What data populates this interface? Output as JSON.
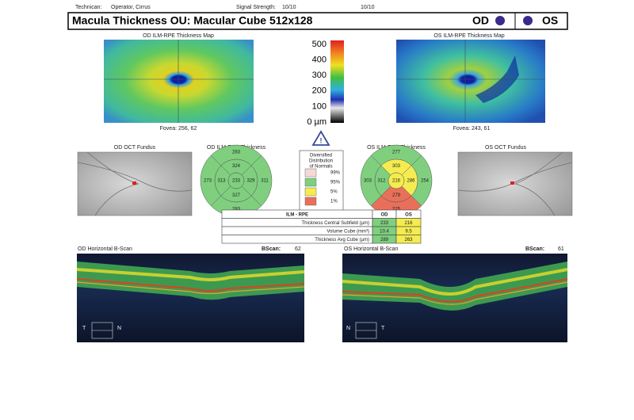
{
  "info": {
    "technician_label": "Technican:",
    "technician": "Operator, Cirrus",
    "signal_label": "Signal Strength:",
    "signal_od": "10/10",
    "signal_os": "10/10"
  },
  "header": {
    "title": "Macula Thickness OU: Macular Cube 512x128",
    "od": "OD",
    "os": "OS"
  },
  "maps": {
    "od": {
      "title": "OD ILM-RPE Thickness Map",
      "fovea": "Fovea: 256, 62"
    },
    "os": {
      "title": "OS ILM-RPE Thickness Map",
      "fovea": "Fovea: 243, 61"
    }
  },
  "scale": {
    "labels": [
      "500",
      "400",
      "300",
      "200",
      "100",
      "0 µm"
    ]
  },
  "fundus": {
    "od": "OD OCT Fundus",
    "os": "OS OCT Fundus"
  },
  "thickness": {
    "od": {
      "title": "OD ILM-RPE Thickness",
      "sectors": {
        "outer_top": "283",
        "inner_top": "324",
        "outer_left": "273",
        "inner_left": "313",
        "center": "233",
        "inner_right": "329",
        "outer_right": "311",
        "inner_bottom": "327",
        "outer_bottom": "283"
      }
    },
    "os": {
      "title": "OS ILM-RPE Thickness",
      "sectors": {
        "outer_top": "277",
        "inner_top": "303",
        "outer_left": "303",
        "inner_left": "312",
        "center": "216",
        "inner_right": "286",
        "outer_right": "254",
        "inner_bottom": "279",
        "outer_bottom": "225"
      }
    }
  },
  "legend": {
    "title": [
      "Diversified",
      "Distribution",
      "of Normals"
    ],
    "items": [
      "99%",
      "95%",
      "5%",
      "1%"
    ]
  },
  "table": {
    "header": [
      "ILM - RPE",
      "OD",
      "OS"
    ],
    "rows": [
      [
        "Thickness Central Subfield (µm)",
        "233",
        "216"
      ],
      [
        "Volume Cube (mm³)",
        "10.4",
        "9.5"
      ],
      [
        "Thickness Avg Cube (µm)",
        "289",
        "263"
      ]
    ]
  },
  "bscan": {
    "od": {
      "title": "OD Horizontal B-Scan",
      "label": "BScan:",
      "number": "62",
      "left": "T",
      "right": "N"
    },
    "os": {
      "title": "OS Horizontal B-Scan",
      "label": "BScan:",
      "number": "61",
      "left": "N",
      "right": "T"
    }
  }
}
